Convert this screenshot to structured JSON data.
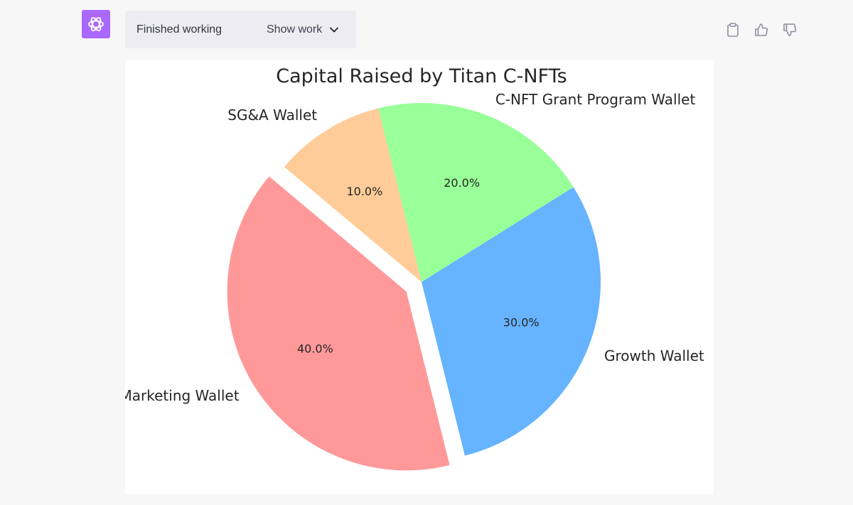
{
  "status": {
    "text": "Finished working",
    "toggle_label": "Show work"
  },
  "chart_data": {
    "type": "pie",
    "title": "Capital Raised by Titan C-NFTs",
    "slices": [
      {
        "label": "Marketing Wallet",
        "value": 40,
        "pct_label": "40.0%",
        "color": "#ff9999",
        "exploded": true
      },
      {
        "label": "Growth Wallet",
        "value": 30,
        "pct_label": "30.0%",
        "color": "#66b3ff",
        "exploded": false
      },
      {
        "label": "C-NFT Grant Program Wallet",
        "value": 20,
        "pct_label": "20.0%",
        "color": "#99ff99",
        "exploded": false
      },
      {
        "label": "SG&A Wallet",
        "value": 10,
        "pct_label": "10.0%",
        "color": "#ffcc99",
        "exploded": false
      }
    ]
  },
  "colors": {
    "avatar_bg": "#ab68ff",
    "page_bg": "#f7f7f8",
    "pill_bg": "#ececf1"
  }
}
